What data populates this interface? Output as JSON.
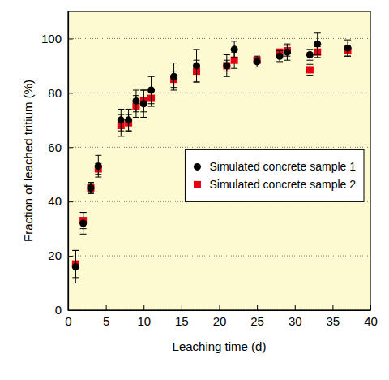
{
  "chart_data": {
    "type": "scatter",
    "x_label": "Leaching time (d)",
    "y_label": "Fraction of leached tritium (%)",
    "xlim": [
      0,
      40
    ],
    "xticks": [
      0,
      5,
      10,
      15,
      20,
      25,
      30,
      35,
      40
    ],
    "ylim": [
      0,
      110
    ],
    "yticks": [
      0,
      20,
      40,
      60,
      80,
      100
    ],
    "grid": true,
    "legend": "right",
    "x": [
      1,
      2,
      3,
      4,
      7,
      8,
      9,
      10,
      11,
      14,
      17,
      21,
      22,
      25,
      28,
      29,
      32,
      33,
      37
    ],
    "series": [
      {
        "name": "Simulated concrete sample 1",
        "color": "#000000",
        "marker": "circle",
        "values": [
          16,
          32,
          45,
          53,
          70,
          70,
          77,
          76,
          81,
          86,
          90,
          90,
          96,
          91.5,
          93.5,
          95,
          94,
          98,
          96.5
        ],
        "errors": [
          6,
          4,
          2,
          4,
          4,
          4,
          4,
          5,
          5,
          5,
          6,
          4,
          3,
          2,
          2,
          3,
          2,
          4,
          3
        ]
      },
      {
        "name": "Simulated concrete sample 2",
        "color": "#e60012",
        "marker": "square",
        "values": [
          17,
          33,
          45,
          52,
          68,
          69,
          75,
          77,
          78,
          85,
          88,
          90,
          92,
          92,
          95,
          95.5,
          88.5,
          95,
          95.5
        ],
        "errors": [
          5,
          3,
          2,
          2,
          4,
          3,
          4,
          4,
          3,
          3,
          4,
          2,
          3,
          1,
          1,
          2,
          2,
          2,
          2
        ]
      }
    ]
  }
}
